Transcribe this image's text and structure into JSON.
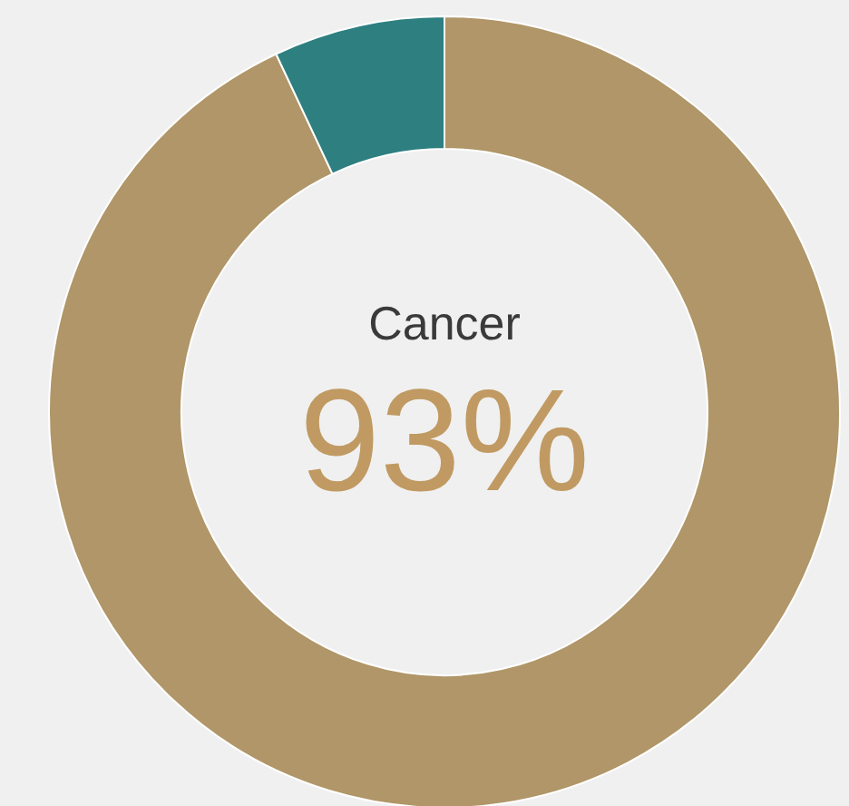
{
  "chart_data": {
    "type": "donut",
    "title": "Cancer",
    "categories": [
      null,
      null
    ],
    "values": [
      93,
      7
    ],
    "colors": [
      "#b09668",
      "#2e7f80"
    ],
    "value_labels": [
      "93%",
      null
    ]
  }
}
